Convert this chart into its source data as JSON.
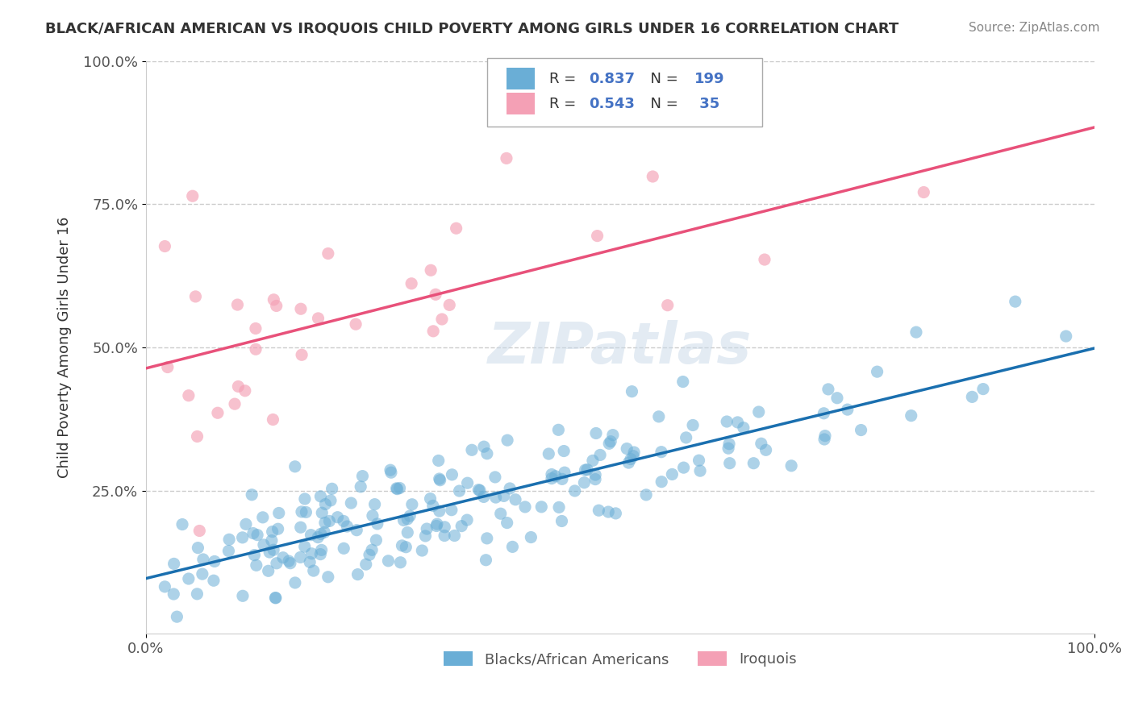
{
  "title": "BLACK/AFRICAN AMERICAN VS IROQUOIS CHILD POVERTY AMONG GIRLS UNDER 16 CORRELATION CHART",
  "source": "Source: ZipAtlas.com",
  "ylabel": "Child Poverty Among Girls Under 16",
  "xlabel": "",
  "xlim": [
    0,
    1.0
  ],
  "ylim": [
    0,
    1.0
  ],
  "xtick_labels": [
    "0.0%",
    "100.0%"
  ],
  "ytick_labels": [
    "25.0%",
    "50.0%",
    "75.0%",
    "100.0%"
  ],
  "blue_R": 0.837,
  "blue_N": 199,
  "pink_R": 0.543,
  "pink_N": 35,
  "blue_color": "#6aaed6",
  "pink_color": "#f4a0b5",
  "blue_line_color": "#1a6faf",
  "pink_line_color": "#e8517a",
  "watermark": "ZIPatlas",
  "legend_label_blue": "Blacks/African Americans",
  "legend_label_pink": "Iroquois",
  "background_color": "#ffffff",
  "grid_color": "#cccccc",
  "title_color": "#333333",
  "source_color": "#888888"
}
